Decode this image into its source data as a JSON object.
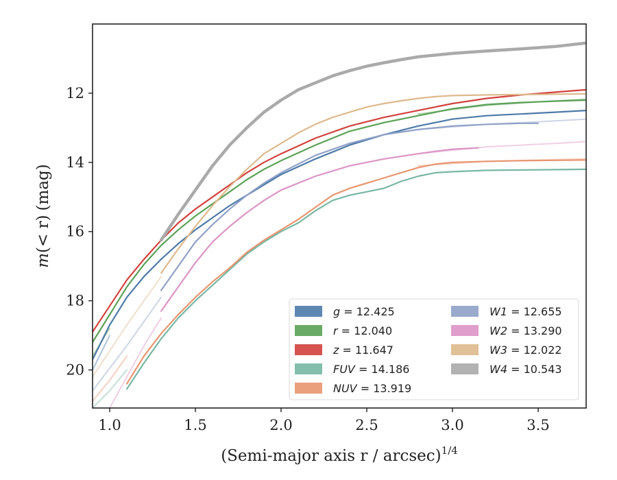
{
  "chart_data": {
    "type": "line",
    "xlabel": "(Semi-major axis r / arcsec)",
    "xlabel_sup": "1/4",
    "ylabel_italic": "m",
    "ylabel_mid": "(< r)",
    "ylabel_unit": "(mag)",
    "xlim": [
      0.9,
      3.78
    ],
    "ylim": [
      21.1,
      10.0
    ],
    "y_inverted": true,
    "grid": false,
    "legend_placement": "lower-right",
    "x_ticks": [
      1.0,
      1.5,
      2.0,
      2.5,
      3.0,
      3.5
    ],
    "x_tick_labels": [
      "1.0",
      "1.5",
      "2.0",
      "2.5",
      "3.0",
      "3.5"
    ],
    "y_ticks": [
      12,
      14,
      16,
      18,
      20
    ],
    "y_tick_labels": [
      "12",
      "14",
      "16",
      "18",
      "20"
    ],
    "series": [
      {
        "name": "g",
        "legend_value": "12.425",
        "color": "#4c7aa8",
        "stroke": 2.2,
        "x": [
          0.9,
          1.0,
          1.1,
          1.2,
          1.3,
          1.4,
          1.5,
          1.6,
          1.7,
          1.8,
          1.9,
          2.0,
          2.2,
          2.4,
          2.6,
          2.8,
          3.0,
          3.2,
          3.4,
          3.6,
          3.78
        ],
        "y": [
          19.7,
          18.7,
          17.9,
          17.3,
          16.8,
          16.35,
          15.95,
          15.6,
          15.25,
          14.95,
          14.65,
          14.35,
          13.9,
          13.5,
          13.2,
          12.95,
          12.75,
          12.65,
          12.6,
          12.55,
          12.5
        ]
      },
      {
        "name": "r",
        "legend_value": "12.040",
        "color": "#5aa156",
        "stroke": 2.2,
        "x": [
          0.9,
          1.0,
          1.1,
          1.2,
          1.3,
          1.4,
          1.5,
          1.6,
          1.7,
          1.8,
          1.9,
          2.0,
          2.2,
          2.4,
          2.6,
          2.8,
          3.0,
          3.2,
          3.4,
          3.6,
          3.78
        ],
        "y": [
          19.2,
          18.4,
          17.6,
          16.95,
          16.4,
          15.95,
          15.55,
          15.2,
          14.85,
          14.5,
          14.2,
          13.95,
          13.5,
          13.1,
          12.85,
          12.65,
          12.45,
          12.33,
          12.27,
          12.23,
          12.2
        ]
      },
      {
        "name": "z",
        "legend_value": "11.647",
        "color": "#d0413c",
        "stroke": 2.2,
        "x": [
          0.9,
          1.0,
          1.1,
          1.2,
          1.3,
          1.4,
          1.5,
          1.6,
          1.7,
          1.8,
          1.9,
          2.0,
          2.2,
          2.4,
          2.6,
          2.8,
          3.0,
          3.2,
          3.4,
          3.6,
          3.78
        ],
        "y": [
          18.9,
          18.15,
          17.4,
          16.8,
          16.25,
          15.75,
          15.35,
          15.0,
          14.65,
          14.3,
          14.0,
          13.75,
          13.3,
          12.95,
          12.7,
          12.5,
          12.3,
          12.15,
          12.05,
          11.97,
          11.9
        ]
      },
      {
        "name": "FUV",
        "legend_value": "14.186",
        "color": "#76b7a4",
        "stroke": 2.2,
        "x": [
          1.1,
          1.2,
          1.3,
          1.4,
          1.5,
          1.6,
          1.7,
          1.8,
          1.9,
          2.0,
          2.1,
          2.2,
          2.3,
          2.4,
          2.5,
          2.6,
          2.7,
          2.8,
          2.9,
          3.0,
          3.2,
          3.4,
          3.6,
          3.78
        ],
        "y": [
          20.55,
          19.8,
          19.1,
          18.5,
          18.0,
          17.55,
          17.1,
          16.65,
          16.3,
          16.0,
          15.75,
          15.4,
          15.1,
          14.95,
          14.85,
          14.75,
          14.55,
          14.4,
          14.3,
          14.27,
          14.23,
          14.22,
          14.21,
          14.2
        ]
      },
      {
        "name": "NUV",
        "legend_value": "13.919",
        "color": "#e8956f",
        "stroke": 2.2,
        "x": [
          1.1,
          1.2,
          1.3,
          1.4,
          1.5,
          1.6,
          1.7,
          1.8,
          1.9,
          2.0,
          2.1,
          2.2,
          2.3,
          2.4,
          2.5,
          2.6,
          2.7,
          2.8,
          2.9,
          3.0,
          3.2,
          3.4,
          3.6,
          3.78
        ],
        "y": [
          20.4,
          19.6,
          18.95,
          18.4,
          17.9,
          17.45,
          17.05,
          16.6,
          16.25,
          15.95,
          15.65,
          15.3,
          14.95,
          14.75,
          14.6,
          14.45,
          14.3,
          14.15,
          14.05,
          14.0,
          13.97,
          13.95,
          13.94,
          13.93
        ]
      },
      {
        "name": "W1",
        "legend_value": "12.655",
        "color": "#8fa1c7",
        "stroke": 2.2,
        "x": [
          1.3,
          1.4,
          1.5,
          1.6,
          1.7,
          1.8,
          1.9,
          2.0,
          2.2,
          2.4,
          2.6,
          2.8,
          3.0,
          3.2,
          3.4,
          3.5
        ],
        "y": [
          17.7,
          17.0,
          16.3,
          15.8,
          15.35,
          14.95,
          14.6,
          14.3,
          13.8,
          13.45,
          13.2,
          13.05,
          12.95,
          12.9,
          12.87,
          12.87
        ]
      },
      {
        "name": "W2",
        "legend_value": "13.290",
        "color": "#dc94c5",
        "stroke": 2.2,
        "x": [
          1.3,
          1.4,
          1.5,
          1.6,
          1.7,
          1.8,
          1.9,
          2.0,
          2.2,
          2.4,
          2.6,
          2.8,
          2.9,
          3.0,
          3.15
        ],
        "y": [
          18.3,
          17.6,
          16.9,
          16.3,
          15.85,
          15.45,
          15.1,
          14.8,
          14.4,
          14.1,
          13.9,
          13.75,
          13.68,
          13.62,
          13.58
        ]
      },
      {
        "name": "W3",
        "legend_value": "12.022",
        "color": "#deb98c",
        "stroke": 2.2,
        "x": [
          1.3,
          1.4,
          1.5,
          1.6,
          1.7,
          1.8,
          1.9,
          2.0,
          2.1,
          2.2,
          2.3,
          2.4,
          2.5,
          2.6,
          2.7,
          2.8,
          2.9,
          3.0,
          3.2,
          3.4,
          3.6,
          3.78
        ],
        "y": [
          17.2,
          16.5,
          15.85,
          15.25,
          14.7,
          14.2,
          13.75,
          13.45,
          13.15,
          12.9,
          12.7,
          12.55,
          12.4,
          12.3,
          12.22,
          12.15,
          12.1,
          12.07,
          12.05,
          12.04,
          12.03,
          12.02
        ]
      },
      {
        "name": "W4",
        "legend_value": "10.543",
        "color": "#aaaaaa",
        "stroke": 4.5,
        "x": [
          1.3,
          1.4,
          1.5,
          1.6,
          1.7,
          1.8,
          1.9,
          2.0,
          2.1,
          2.2,
          2.3,
          2.4,
          2.5,
          2.6,
          2.7,
          2.8,
          2.9,
          3.0,
          3.2,
          3.4,
          3.6,
          3.78
        ],
        "y": [
          16.25,
          15.5,
          14.8,
          14.1,
          13.5,
          13.0,
          12.55,
          12.2,
          11.9,
          11.7,
          11.5,
          11.35,
          11.22,
          11.12,
          11.03,
          10.95,
          10.9,
          10.85,
          10.78,
          10.72,
          10.65,
          10.55
        ]
      }
    ]
  },
  "faint_tails": [
    {
      "color": "#4c7aa8",
      "x": [
        0.9,
        1.0
      ],
      "y": [
        20.0,
        19.0
      ]
    },
    {
      "color": "#5aa156",
      "x": [
        0.9,
        1.0
      ],
      "y": [
        19.6,
        18.8
      ]
    },
    {
      "color": "#d0413c",
      "x": [
        0.9,
        1.0
      ],
      "y": [
        19.2,
        18.4
      ]
    },
    {
      "color": "#deb98c",
      "x": [
        0.9,
        1.1,
        1.3
      ],
      "y": [
        20.2,
        18.7,
        17.3
      ]
    },
    {
      "color": "#8fa1c7",
      "x": [
        0.9,
        1.1,
        1.3
      ],
      "y": [
        20.6,
        19.3,
        17.9
      ]
    },
    {
      "color": "#dc94c5",
      "x": [
        1.0,
        1.2,
        1.3
      ],
      "y": [
        21.1,
        19.3,
        18.5
      ]
    },
    {
      "color": "#76b7a4",
      "x": [
        0.9,
        1.0,
        1.1
      ],
      "y": [
        21.1,
        20.6,
        20.0
      ]
    },
    {
      "color": "#e8956f",
      "x": [
        0.9,
        1.0,
        1.1
      ],
      "y": [
        20.9,
        20.3,
        19.6
      ]
    },
    {
      "color": "#8fa1c7",
      "x": [
        2.8,
        3.2,
        3.6,
        3.78
      ],
      "y": [
        13.05,
        12.9,
        12.8,
        12.75
      ]
    },
    {
      "color": "#dc94c5",
      "x": [
        2.8,
        3.2,
        3.6,
        3.78
      ],
      "y": [
        13.75,
        13.55,
        13.45,
        13.4
      ]
    },
    {
      "color": "#5aa156",
      "x": [
        2.8,
        3.2,
        3.6,
        3.78
      ],
      "y": [
        12.6,
        12.35,
        12.22,
        12.17
      ]
    },
    {
      "color": "#e8956f",
      "x": [
        2.8,
        3.2,
        3.6,
        3.78
      ],
      "y": [
        14.1,
        13.97,
        13.92,
        13.9
      ]
    }
  ]
}
